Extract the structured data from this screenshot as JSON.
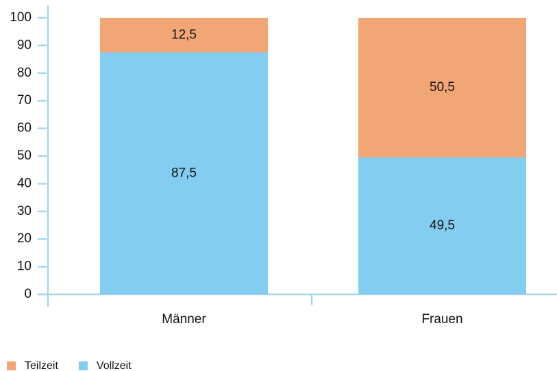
{
  "chart_data": {
    "type": "stacked_bar",
    "categories": [
      "Männer",
      "Frauen"
    ],
    "series": [
      {
        "name": "Vollzeit",
        "color": "#83cdf1",
        "values": [
          87.5,
          49.5
        ],
        "value_labels": [
          "87,5",
          "49,5"
        ]
      },
      {
        "name": "Teilzeit",
        "color": "#f2a676",
        "values": [
          12.5,
          50.5
        ],
        "value_labels": [
          "12,5",
          "50,5"
        ]
      }
    ],
    "ylim": [
      0,
      100
    ],
    "yticks": [
      0,
      10,
      20,
      30,
      40,
      50,
      60,
      70,
      80,
      90,
      100
    ]
  }
}
